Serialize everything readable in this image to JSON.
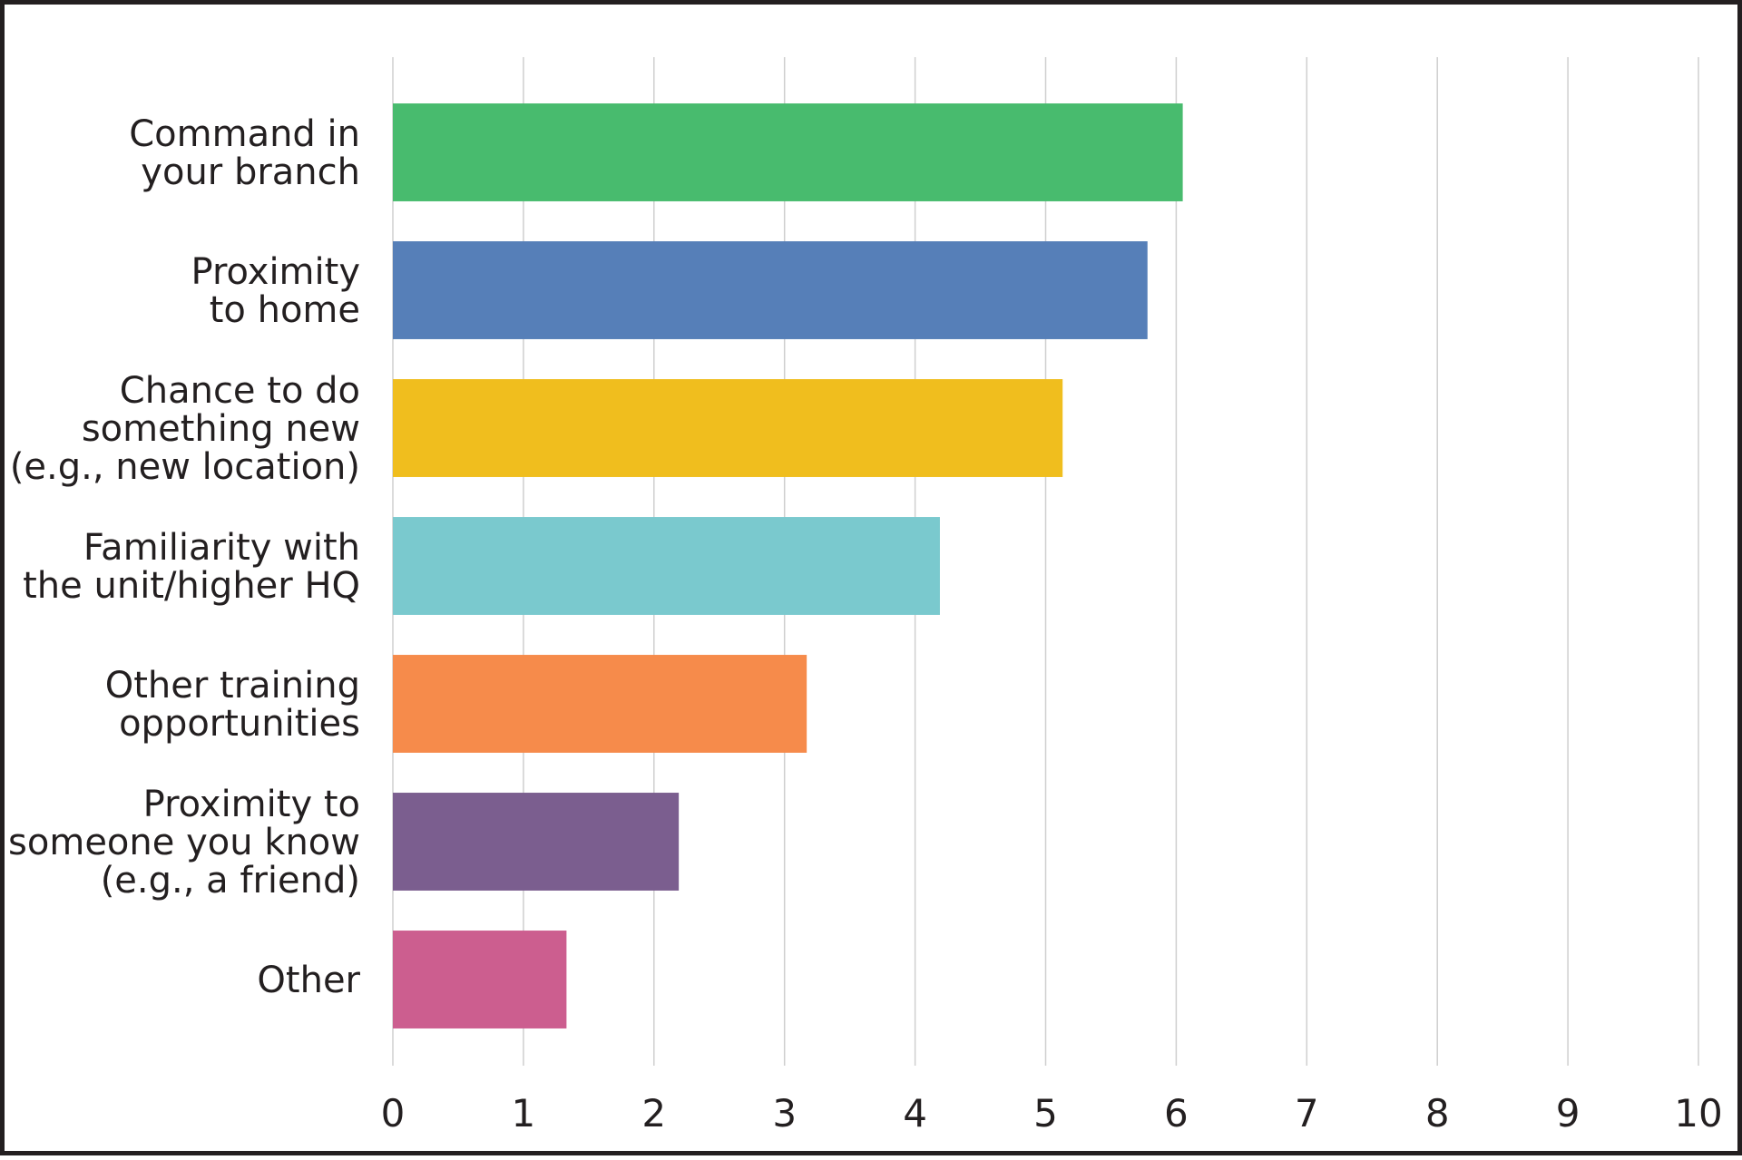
{
  "chart_data": {
    "type": "bar",
    "orientation": "horizontal",
    "categories": [
      [
        "Command in",
        "your branch"
      ],
      [
        "Proximity",
        "to home"
      ],
      [
        "Chance to do",
        "something new",
        "(e.g., new location)"
      ],
      [
        "Familiarity with",
        "the unit/higher HQ"
      ],
      [
        "Other training",
        "opportunities"
      ],
      [
        "Proximity to",
        "someone you know",
        "(e.g., a friend)"
      ],
      [
        "Other"
      ]
    ],
    "values": [
      6.05,
      5.78,
      5.13,
      4.19,
      3.17,
      2.19,
      1.33
    ],
    "colors": [
      "#48bb6e",
      "#567fb8",
      "#f0be1e",
      "#7ac9ce",
      "#f68b4b",
      "#7b5e8f",
      "#cc5e8f"
    ],
    "xlim": [
      0,
      10
    ],
    "xticks": [
      "0",
      "1",
      "2",
      "3",
      "4",
      "5",
      "6",
      "7",
      "8",
      "9",
      "10"
    ],
    "grid": true,
    "title": "",
    "xlabel": "",
    "ylabel": ""
  }
}
